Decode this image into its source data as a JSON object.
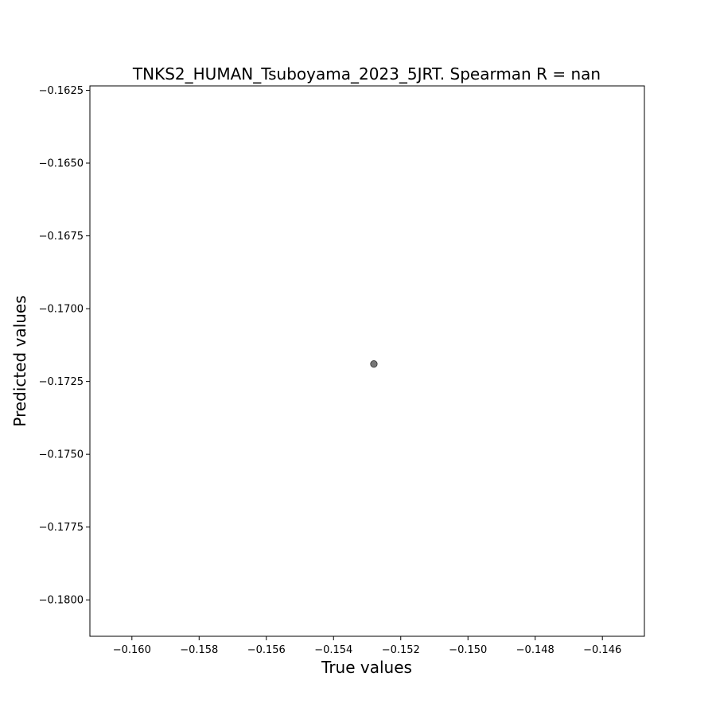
{
  "chart_data": {
    "type": "scatter",
    "title": "TNKS2_HUMAN_Tsuboyama_2023_5JRT. Spearman R = nan",
    "xlabel": "True values",
    "ylabel": "Predicted values",
    "xlim": [
      -0.16125,
      -0.14475
    ],
    "ylim": [
      -0.18125,
      -0.16235
    ],
    "xticks": [
      -0.16,
      -0.158,
      -0.156,
      -0.154,
      -0.152,
      -0.15,
      -0.148,
      -0.146
    ],
    "xtick_labels": [
      "−0.160",
      "−0.158",
      "−0.156",
      "−0.154",
      "−0.152",
      "−0.150",
      "−0.148",
      "−0.146"
    ],
    "yticks": [
      -0.1625,
      -0.165,
      -0.1675,
      -0.17,
      -0.1725,
      -0.175,
      -0.1775,
      -0.18
    ],
    "ytick_labels": [
      "−0.1625",
      "−0.1650",
      "−0.1675",
      "−0.1700",
      "−0.1725",
      "−0.1750",
      "−0.1775",
      "−0.1800"
    ],
    "grid": false,
    "points": [
      {
        "x": -0.1528,
        "y": -0.1719
      }
    ],
    "marker_color": "#555555"
  }
}
